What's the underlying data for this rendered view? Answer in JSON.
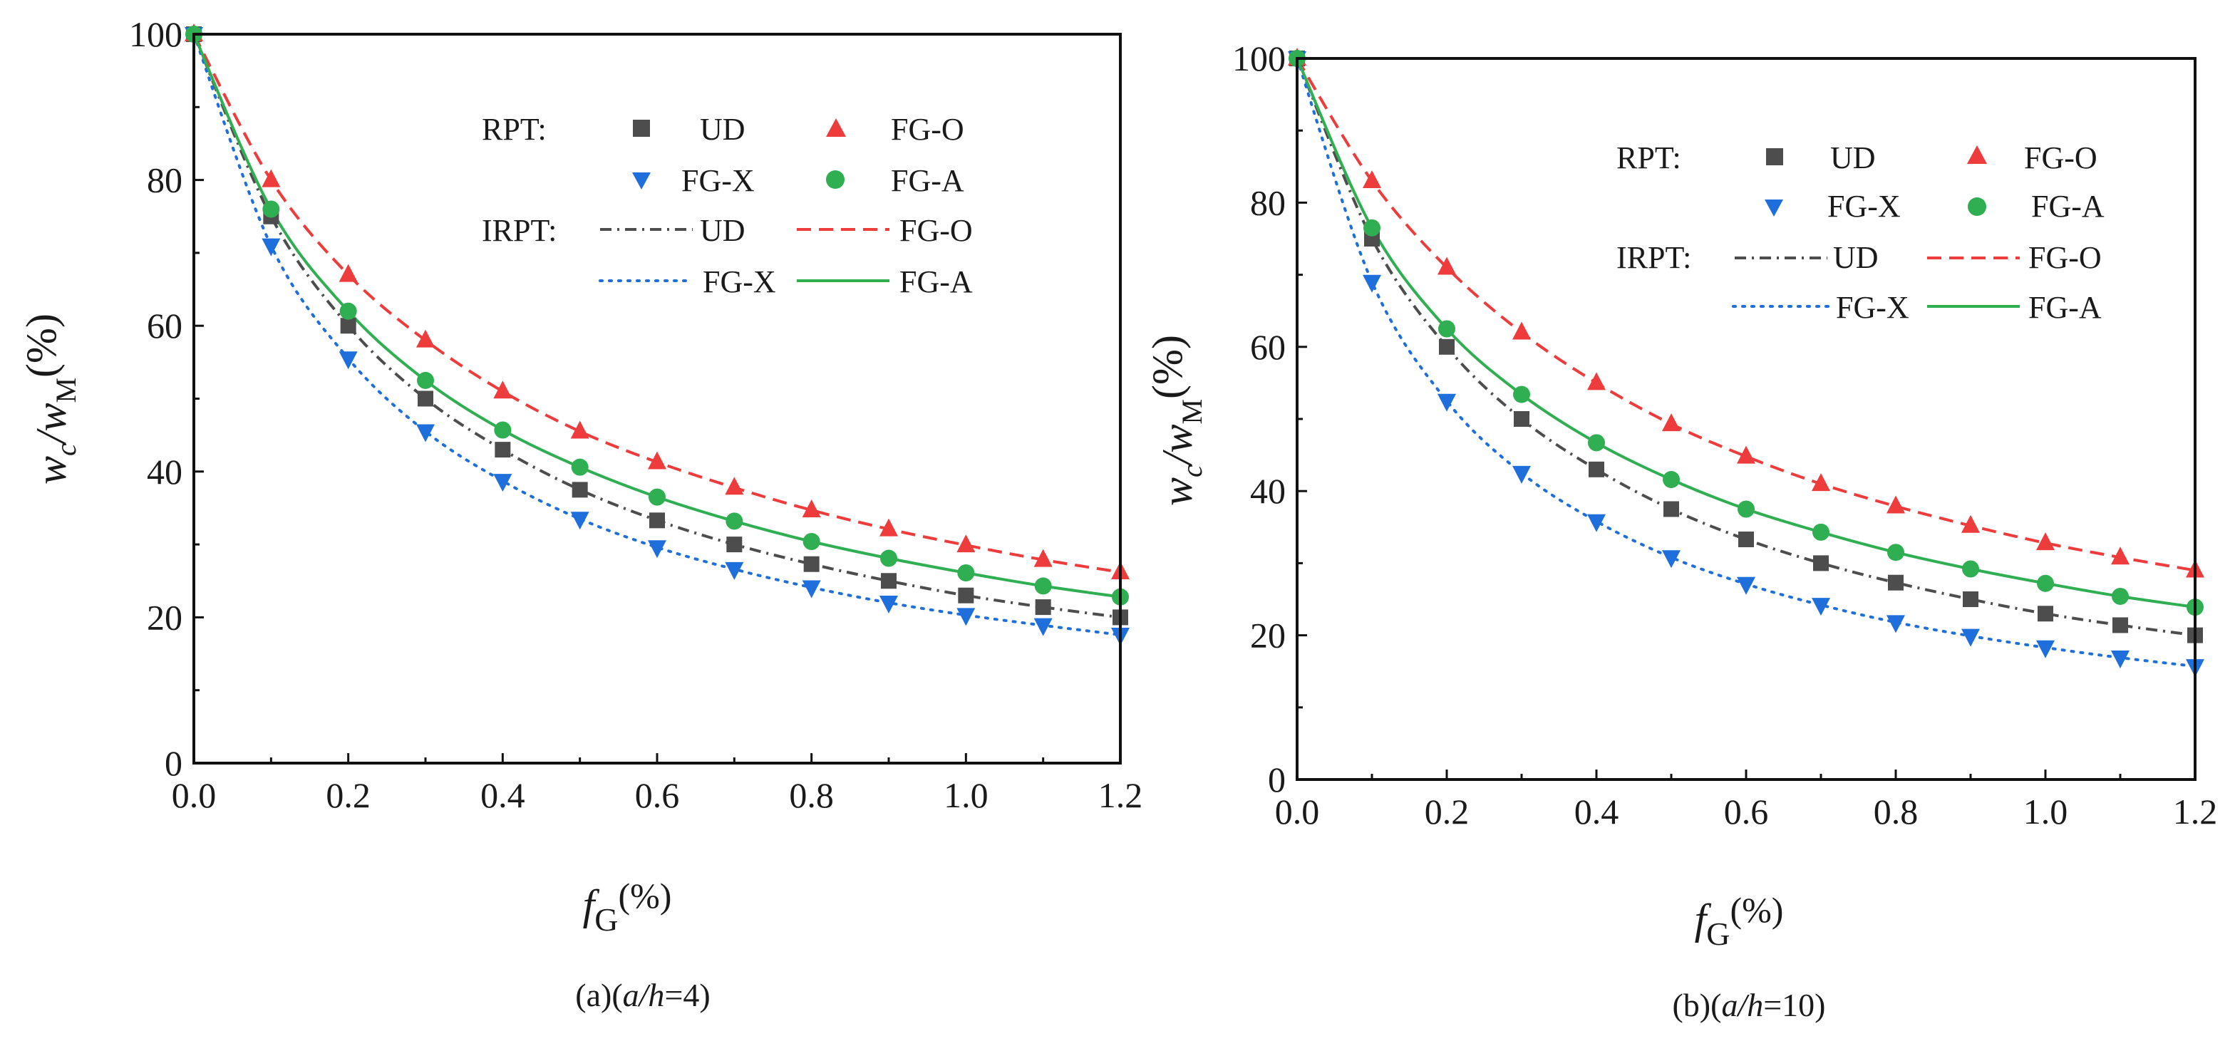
{
  "colors": {
    "UD": "#4d4d4d",
    "FG-O": "#ee3b3b",
    "FG-X": "#1e6fdc",
    "FG-A": "#2fae52",
    "axis": "#111111"
  },
  "chart_data": [
    {
      "type": "line",
      "caption_prefix": "(a)(",
      "caption_ah": "a/h",
      "caption_value": "=4)",
      "xlabel_var": "f",
      "xlabel_sub": "G",
      "xlabel_unit": "(%)",
      "ylabel_w": "w",
      "ylabel_c": "c",
      "ylabel_slash": "/w",
      "ylabel_M": "M",
      "ylabel_unit": "(%)",
      "xlim": [
        0,
        1.2
      ],
      "ylim": [
        0,
        100
      ],
      "xticks": [
        "0.0",
        "0.2",
        "0.4",
        "0.6",
        "0.8",
        "1.0",
        "1.2"
      ],
      "yticks": [
        "0",
        "20",
        "40",
        "60",
        "80",
        "100"
      ],
      "x": [
        0,
        0.1,
        0.2,
        0.3,
        0.4,
        0.5,
        0.6,
        0.7,
        0.8,
        0.9,
        1.0,
        1.1,
        1.2
      ],
      "legend": {
        "rpt": "RPT:",
        "irpt": "IRPT:",
        "ud": "UD",
        "fgo": "FG-O",
        "fgx": "FG-X",
        "fga": "FG-A"
      },
      "series": [
        {
          "name": "UD",
          "values": [
            100,
            75,
            60,
            50,
            43,
            37.5,
            33.3,
            30,
            27.3,
            25,
            23,
            21.4,
            20
          ]
        },
        {
          "name": "FG-O",
          "values": [
            100,
            80,
            67,
            58,
            51,
            45.5,
            41.3,
            37.8,
            34.7,
            32.1,
            29.9,
            27.9,
            26.2
          ]
        },
        {
          "name": "FG-X",
          "values": [
            100,
            71,
            55.5,
            45.5,
            38.7,
            33.5,
            29.6,
            26.6,
            24.1,
            22,
            20.3,
            18.9,
            17.6
          ]
        },
        {
          "name": "FG-A",
          "values": [
            100,
            76,
            62,
            52.5,
            45.7,
            40.6,
            36.5,
            33.2,
            30.4,
            28.1,
            26.1,
            24.3,
            22.8
          ]
        }
      ]
    },
    {
      "type": "line",
      "caption_prefix": "(b)(",
      "caption_ah": "a/h",
      "caption_value": "=10)",
      "xlabel_var": "f",
      "xlabel_sub": "G",
      "xlabel_unit": "(%)",
      "ylabel_w": "w",
      "ylabel_c": "c",
      "ylabel_slash": "/w",
      "ylabel_M": "M",
      "ylabel_unit": "(%)",
      "xlim": [
        0,
        1.2
      ],
      "ylim": [
        0,
        100
      ],
      "xticks": [
        "0.0",
        "0.2",
        "0.4",
        "0.6",
        "0.8",
        "1.0",
        "1.2"
      ],
      "yticks": [
        "0",
        "20",
        "40",
        "60",
        "80",
        "100"
      ],
      "x": [
        0,
        0.1,
        0.2,
        0.3,
        0.4,
        0.5,
        0.6,
        0.7,
        0.8,
        0.9,
        1.0,
        1.1,
        1.2
      ],
      "legend": {
        "rpt": "RPT:",
        "irpt": "IRPT:",
        "ud": "UD",
        "fgo": "FG-O",
        "fgx": "FG-X",
        "fga": "FG-A"
      },
      "series": [
        {
          "name": "UD",
          "values": [
            100,
            75,
            60,
            50,
            43,
            37.5,
            33.3,
            30,
            27.3,
            25,
            23,
            21.4,
            20
          ]
        },
        {
          "name": "FG-O",
          "values": [
            100,
            83,
            71,
            62,
            55,
            49.3,
            44.8,
            41,
            37.9,
            35.2,
            32.8,
            30.8,
            29
          ]
        },
        {
          "name": "FG-X",
          "values": [
            100,
            69,
            52.5,
            42.5,
            35.8,
            30.8,
            27.1,
            24.2,
            21.8,
            19.9,
            18.3,
            16.9,
            15.7
          ]
        },
        {
          "name": "FG-A",
          "values": [
            100,
            76.5,
            62.5,
            53.4,
            46.7,
            41.6,
            37.5,
            34.3,
            31.5,
            29.2,
            27.2,
            25.4,
            23.9
          ]
        }
      ]
    }
  ]
}
